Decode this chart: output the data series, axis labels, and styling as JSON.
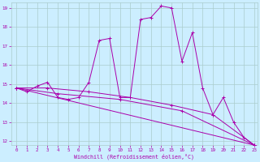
{
  "xlabel": "Windchill (Refroidissement éolien,°C)",
  "bg_color": "#cceeff",
  "line_color": "#aa00aa",
  "grid_color": "#aacccc",
  "series": [
    [
      0,
      14.8
    ],
    [
      1,
      14.6
    ],
    [
      2,
      14.9
    ],
    [
      3,
      15.1
    ],
    [
      4,
      14.3
    ],
    [
      5,
      14.2
    ],
    [
      6,
      14.3
    ],
    [
      7,
      15.1
    ],
    [
      8,
      17.3
    ],
    [
      9,
      17.4
    ],
    [
      10,
      14.3
    ],
    [
      11,
      14.3
    ],
    [
      12,
      18.4
    ],
    [
      13,
      18.5
    ],
    [
      14,
      19.1
    ],
    [
      15,
      19.0
    ],
    [
      16,
      16.2
    ],
    [
      17,
      17.7
    ],
    [
      18,
      14.8
    ],
    [
      19,
      13.4
    ],
    [
      20,
      14.3
    ],
    [
      21,
      13.0
    ],
    [
      22,
      12.2
    ],
    [
      23,
      11.8
    ]
  ],
  "series2": [
    [
      0,
      14.8
    ],
    [
      23,
      11.8
    ]
  ],
  "series3": [
    [
      0,
      14.8
    ],
    [
      4,
      14.5
    ],
    [
      10,
      14.2
    ],
    [
      16,
      13.6
    ],
    [
      23,
      11.8
    ]
  ],
  "series4": [
    [
      0,
      14.8
    ],
    [
      3,
      14.8
    ],
    [
      7,
      14.6
    ],
    [
      11,
      14.3
    ],
    [
      15,
      13.9
    ],
    [
      19,
      13.4
    ],
    [
      23,
      11.8
    ]
  ],
  "xmin": 0,
  "xmax": 23,
  "ymin": 12,
  "ymax": 19,
  "xticks": [
    0,
    1,
    2,
    3,
    4,
    5,
    6,
    7,
    8,
    9,
    10,
    11,
    12,
    13,
    14,
    15,
    16,
    17,
    18,
    19,
    20,
    21,
    22,
    23
  ],
  "yticks": [
    12,
    13,
    14,
    15,
    16,
    17,
    18,
    19
  ]
}
